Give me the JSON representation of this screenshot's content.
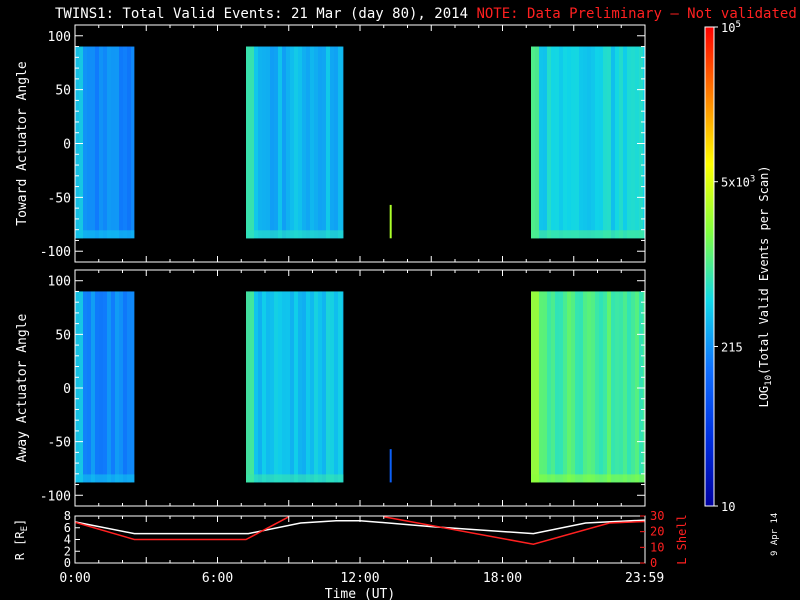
{
  "title": {
    "main": "TWINS1: Total Valid Events: 21 Mar (day  80), 2014",
    "note": "NOTE: Data Preliminary — Not validated"
  },
  "date_stamp": "9 Apr 14",
  "colors": {
    "background": "#000000",
    "foreground": "#ffffff",
    "note": "#ff2020",
    "lshell_line": "#ff2020",
    "colorbar_stops": [
      "#0000a0",
      "#0030e0",
      "#1070ff",
      "#10d8e8",
      "#80ff40",
      "#ffff00",
      "#ff8000",
      "#ff0000"
    ]
  },
  "chart_data": [
    {
      "type": "heatmap",
      "name": "toward",
      "ylabel": "Toward Actuator Angle",
      "ylim": [
        -110,
        110
      ],
      "yticks": [
        -100,
        -50,
        0,
        50,
        100
      ],
      "xlim": [
        0,
        24
      ],
      "data_blocks": [
        {
          "start_hr": 0.0,
          "end_hr": 2.5,
          "angle_range": [
            -88,
            90
          ],
          "level": 0.32
        },
        {
          "start_hr": 7.2,
          "end_hr": 11.3,
          "angle_range": [
            -88,
            90
          ],
          "level": 0.38
        },
        {
          "start_hr": 13.25,
          "end_hr": 13.32,
          "angle_range": [
            -88,
            -57
          ],
          "level": 0.62
        },
        {
          "start_hr": 19.2,
          "end_hr": 24.0,
          "angle_range": [
            -88,
            90
          ],
          "level": 0.42
        }
      ]
    },
    {
      "type": "heatmap",
      "name": "away",
      "ylabel": "Away Actuator Angle",
      "ylim": [
        -110,
        110
      ],
      "yticks": [
        -100,
        -50,
        0,
        50,
        100
      ],
      "xlim": [
        0,
        24
      ],
      "data_blocks": [
        {
          "start_hr": 0.0,
          "end_hr": 2.5,
          "angle_range": [
            -88,
            90
          ],
          "level": 0.32
        },
        {
          "start_hr": 7.2,
          "end_hr": 11.3,
          "angle_range": [
            -88,
            90
          ],
          "level": 0.4
        },
        {
          "start_hr": 13.25,
          "end_hr": 13.32,
          "angle_range": [
            -88,
            -57
          ],
          "level": 0.25
        },
        {
          "start_hr": 19.2,
          "end_hr": 24.0,
          "angle_range": [
            -88,
            90
          ],
          "level": 0.5
        }
      ]
    },
    {
      "type": "line",
      "name": "orbit",
      "ylabel": "R [R",
      "ylabel_sub": "E",
      "ylabel_end": "]",
      "y2label": "L Shell",
      "xlabel": "Time (UT)",
      "xlim": [
        0,
        24
      ],
      "xticks": [
        0,
        6,
        12,
        18,
        23.983
      ],
      "xtick_labels": [
        "0:00",
        "6:00",
        "12:00",
        "18:00",
        "23:59"
      ],
      "ylim": [
        0,
        8
      ],
      "yticks": [
        0,
        2,
        4,
        6,
        8
      ],
      "ylim2": [
        0,
        30
      ],
      "yticks2": [
        0,
        10,
        20,
        30
      ],
      "series": [
        {
          "axis": "left",
          "color": "#ffffff",
          "x": [
            0,
            2.5,
            7.3,
            9.5,
            11.0,
            12.0,
            15.0,
            19.3,
            21.5,
            24.0
          ],
          "y": [
            7.0,
            5.0,
            5.0,
            6.8,
            7.2,
            7.2,
            6.2,
            5.0,
            6.8,
            7.3
          ]
        },
        {
          "axis": "right",
          "color": "#ff2020",
          "x": [
            0,
            2.5,
            7.2,
            9.0
          ],
          "y": [
            26.0,
            15.0,
            15.0,
            29.5
          ]
        },
        {
          "axis": "right",
          "color": "#ff2020",
          "x": [
            13.0,
            19.3,
            22.5,
            24.0
          ],
          "y": [
            29.5,
            12.0,
            25.5,
            26.5
          ]
        }
      ]
    }
  ],
  "colorbar": {
    "label": "LOG10(Total Valid Events per Scan)",
    "label_prefix": "LOG",
    "label_sub": "10",
    "label_rest": "(Total Valid Events per Scan)",
    "ticks": [
      {
        "text": "10",
        "level": 0.0
      },
      {
        "text": "215",
        "level": 0.333
      },
      {
        "text": "5x10",
        "sup": "3",
        "level": 0.677
      },
      {
        "text": "10",
        "sup": "5",
        "level": 1.0
      }
    ]
  }
}
